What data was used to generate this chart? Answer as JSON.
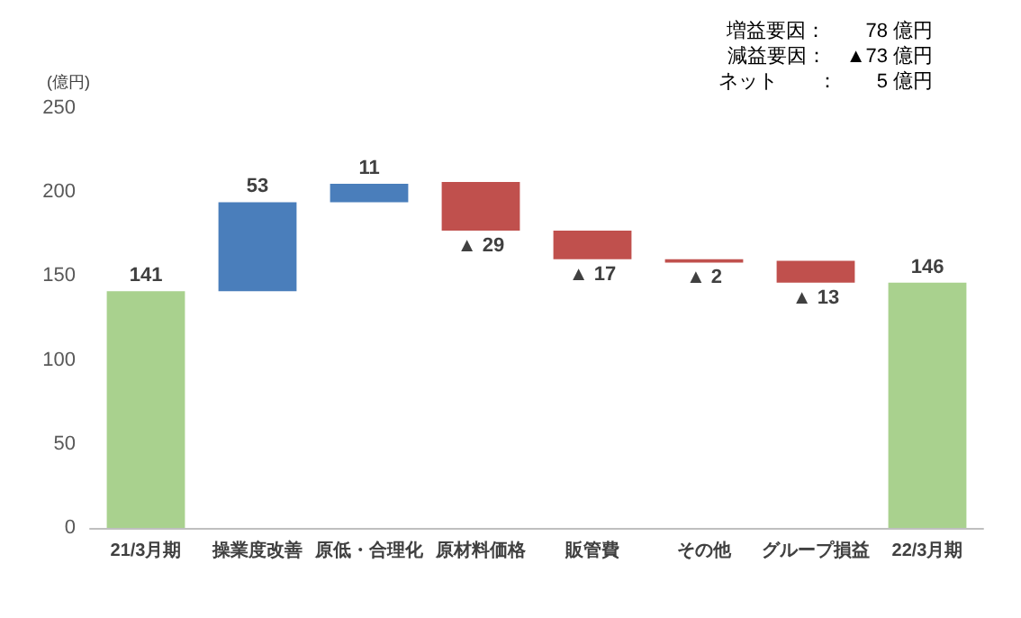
{
  "chart_data": {
    "type": "bar",
    "ylabel": "(億円)",
    "categories": [
      "21/3月期",
      "操業度改善",
      "原低・合理化",
      "原材料価格",
      "販管費",
      "その他",
      "グループ損益",
      "22/3月期"
    ],
    "values": [
      141,
      53,
      11,
      -29,
      -17,
      -2,
      -13,
      146
    ],
    "base": [
      0,
      141,
      194,
      206,
      177,
      160,
      159,
      0
    ],
    "colors": [
      "#a9d18e",
      "#4a7ebb",
      "#4a7ebb",
      "#c0504d",
      "#c0504d",
      "#c0504d",
      "#c0504d",
      "#a9d18e"
    ],
    "value_labels": [
      "141",
      "53",
      "11",
      "▲ 29",
      "▲ 17",
      "▲ 2",
      "▲ 13",
      "146"
    ],
    "ylim": [
      0,
      250
    ],
    "yticks": [
      0,
      50,
      100,
      150,
      200,
      250
    ],
    "grid": false,
    "annotations": [
      "増益要因：　　78 億円",
      "減益要因：　▲73 億円",
      "ネット　　：　　5 億円"
    ]
  }
}
